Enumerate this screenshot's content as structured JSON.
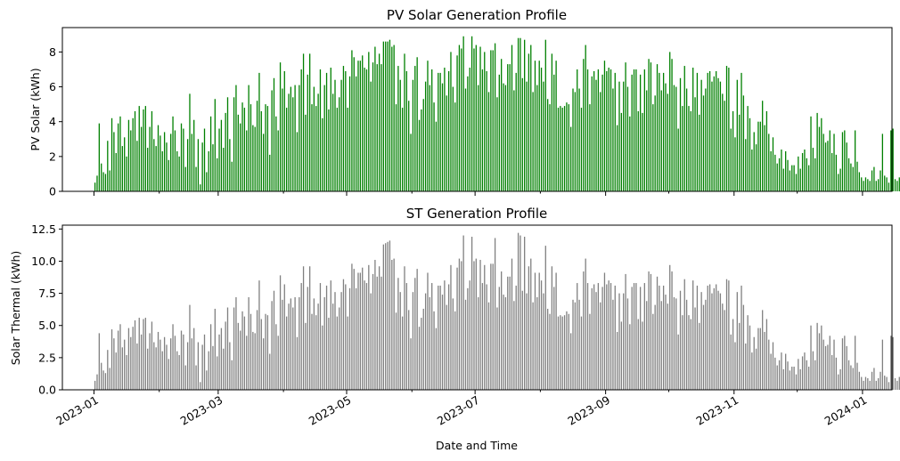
{
  "colors": {
    "pv": "#008000",
    "st": "#808080",
    "axis": "#000000",
    "background": "#ffffff"
  },
  "chart_data": [
    {
      "type": "bar",
      "title": "PV Solar Generation Profile",
      "xlabel": "",
      "ylabel": "PV Solar (kWh)",
      "ylim": [
        0,
        9.4
      ],
      "yticks": [
        "0",
        "2",
        "4",
        "6",
        "8"
      ],
      "xlim": [
        "2022-12-17",
        "2024-01-15"
      ],
      "grid": false,
      "series_color": "#008000",
      "date_range": [
        "2023-01-01",
        "2023-12-31"
      ],
      "resolution": "hourly",
      "daily_peaks": [
        0.5,
        0.9,
        3.9,
        1.6,
        1.1,
        1.0,
        2.9,
        1.2,
        4.2,
        3.4,
        2.2,
        3.9,
        4.3,
        2.6,
        3.1,
        2.0,
        4.1,
        3.5,
        4.2,
        4.6,
        2.9,
        4.9,
        3.7,
        4.7,
        4.9,
        2.5,
        3.7,
        4.6,
        3.0,
        2.6,
        3.8,
        3.2,
        2.3,
        3.4,
        2.8,
        1.8,
        3.3,
        4.3,
        3.5,
        2.3,
        2.0,
        3.9,
        3.6,
        1.4,
        3.0,
        5.6,
        3.3,
        4.1,
        1.4,
        3.0,
        0.4,
        2.8,
        3.6,
        1.1,
        2.3,
        4.3,
        2.7,
        5.3,
        1.9,
        3.6,
        4.1,
        2.5,
        4.5,
        5.4,
        3.0,
        1.7,
        5.4,
        6.1,
        4.4,
        3.9,
        5.1,
        4.8,
        3.5,
        6.1,
        5.0,
        3.8,
        3.7,
        5.2,
        6.8,
        4.6,
        3.3,
        5.0,
        4.9,
        2.1,
        5.8,
        6.5,
        4.3,
        3.5,
        7.4,
        5.9,
        6.9,
        4.8,
        5.6,
        6.0,
        5.4,
        6.1,
        3.4,
        6.1,
        7.0,
        7.9,
        4.4,
        6.7,
        7.9,
        5.0,
        6.0,
        4.9,
        5.6,
        7.0,
        4.2,
        6.1,
        6.8,
        4.7,
        7.1,
        5.6,
        6.4,
        4.8,
        5.4,
        6.4,
        7.2,
        6.9,
        4.8,
        6.6,
        8.1,
        7.7,
        6.6,
        7.5,
        7.5,
        7.8,
        7.1,
        7.0,
        8.0,
        6.3,
        7.4,
        8.3,
        7.3,
        7.9,
        7.3,
        8.6,
        8.6,
        8.6,
        8.7,
        8.3,
        8.4,
        5.0,
        7.2,
        6.4,
        4.8,
        7.9,
        6.9,
        5.2,
        3.3,
        6.4,
        7.2,
        7.7,
        4.1,
        4.7,
        5.3,
        6.3,
        7.5,
        6.1,
        7.0,
        5.1,
        4.0,
        6.8,
        6.8,
        6.2,
        7.1,
        5.5,
        6.9,
        8.0,
        6.0,
        5.1,
        7.8,
        8.4,
        8.2,
        8.9,
        5.9,
        6.6,
        7.1,
        8.9,
        8.2,
        8.4,
        6.1,
        8.3,
        7.0,
        8.0,
        6.9,
        5.7,
        8.1,
        8.1,
        8.5,
        5.4,
        6.7,
        7.6,
        6.2,
        6.1,
        7.3,
        7.3,
        8.4,
        5.8,
        6.8,
        8.8,
        8.8,
        6.5,
        8.7,
        6.3,
        7.9,
        8.4,
        5.7,
        7.5,
        6.1,
        7.5,
        7.1,
        6.3,
        8.7,
        5.3,
        5.0,
        7.9,
        6.7,
        7.5,
        4.8,
        4.9,
        4.8,
        4.9,
        5.1,
        5.0,
        3.7,
        5.9,
        5.7,
        7.0,
        5.9,
        4.8,
        7.6,
        8.4,
        7.0,
        5.0,
        6.6,
        6.9,
        6.4,
        7.0,
        5.7,
        6.7,
        7.5,
        6.9,
        7.1,
        7.0,
        5.9,
        6.8,
        3.8,
        6.3,
        4.5,
        6.3,
        7.4,
        6.0,
        4.3,
        6.7,
        7.0,
        7.0,
        4.6,
        6.7,
        4.5,
        7.0,
        5.8,
        7.6,
        7.4,
        5.0,
        5.5,
        7.3,
        6.8,
        5.8,
        6.8,
        6.2,
        5.6,
        8.0,
        7.6,
        6.1,
        6.0,
        3.6,
        6.5,
        4.9,
        7.2,
        5.9,
        4.9,
        4.6,
        7.1,
        5.4,
        6.8,
        4.4,
        6.4,
        5.5,
        5.9,
        6.8,
        6.9,
        6.3,
        6.6,
        6.9,
        6.5,
        6.3,
        5.6,
        5.2,
        7.2,
        7.1,
        3.6,
        4.6,
        3.1,
        6.4,
        4.4,
        6.8,
        5.5,
        3.0,
        4.9,
        4.2,
        2.4,
        3.4,
        2.7,
        4.0,
        4.0,
        5.2,
        3.8,
        4.6,
        3.3,
        2.3,
        3.1,
        2.1,
        1.6,
        1.9,
        2.4,
        1.3,
        2.3,
        1.8,
        1.2,
        1.5,
        1.5,
        1.0,
        2.0,
        1.3,
        2.2,
        2.4,
        1.9,
        1.5,
        4.3,
        2.5,
        1.9,
        4.5,
        3.7,
        4.2,
        3.3,
        2.8,
        2.9,
        3.5,
        2.2,
        3.3,
        2.1,
        1.0,
        1.3,
        3.4,
        3.5,
        2.8,
        1.9,
        1.6,
        1.4,
        3.5,
        1.7,
        1.1,
        0.8,
        0.6,
        0.8,
        0.7,
        0.6,
        1.2,
        1.4,
        0.6,
        0.7,
        1.2,
        3.3,
        0.9,
        0.8,
        0.5,
        3.5,
        3.6,
        0.7,
        0.6,
        0.8,
        3.3,
        0.8,
        0.5,
        0.6,
        0.7,
        3.3,
        3.6,
        0.7,
        0.8,
        3.0
      ]
    },
    {
      "type": "bar",
      "title": "ST Generation Profile",
      "xlabel": "Date and Time",
      "ylabel": "Solar Thermal (kWh)",
      "ylim": [
        0,
        12.8
      ],
      "yticks": [
        "0.0",
        "2.5",
        "5.0",
        "7.5",
        "10.0",
        "12.5"
      ],
      "xticks": [
        "2023-01",
        "2023-03",
        "2023-05",
        "2023-07",
        "2023-09",
        "2023-11",
        "2024-01"
      ],
      "xlim": [
        "2022-12-17",
        "2024-01-15"
      ],
      "grid": false,
      "series_color": "#808080",
      "date_range": [
        "2023-01-01",
        "2023-12-31"
      ],
      "resolution": "hourly",
      "daily_peaks": [
        0.7,
        1.2,
        4.4,
        2.1,
        1.5,
        1.3,
        3.1,
        1.7,
        4.7,
        4.0,
        2.9,
        4.6,
        5.1,
        3.3,
        3.9,
        2.7,
        4.8,
        4.1,
        4.9,
        5.4,
        3.6,
        5.6,
        4.3,
        5.5,
        5.6,
        3.2,
        4.4,
        5.3,
        3.7,
        3.3,
        4.5,
        3.9,
        3.0,
        4.1,
        3.5,
        2.4,
        4.0,
        5.1,
        4.2,
        3.0,
        2.7,
        4.6,
        4.3,
        1.9,
        3.7,
        6.6,
        4.0,
        4.8,
        1.9,
        3.7,
        0.6,
        3.5,
        4.3,
        1.5,
        3.0,
        5.1,
        3.4,
        6.3,
        2.6,
        4.3,
        4.8,
        3.2,
        5.3,
        6.4,
        3.7,
        2.3,
        6.4,
        7.2,
        5.2,
        4.6,
        6.1,
        5.7,
        4.2,
        7.2,
        5.9,
        4.5,
        4.4,
        6.2,
        8.5,
        5.5,
        4.0,
        5.9,
        5.8,
        2.8,
        6.9,
        7.7,
        5.1,
        4.2,
        8.9,
        7.0,
        8.2,
        5.7,
        6.7,
        7.1,
        6.4,
        7.2,
        4.1,
        7.2,
        8.3,
        9.6,
        5.2,
        8.0,
        9.6,
        5.9,
        7.1,
        5.8,
        6.7,
        8.3,
        5.0,
        7.2,
        8.1,
        5.6,
        8.5,
        6.7,
        7.6,
        5.7,
        6.4,
        7.6,
        8.6,
        8.2,
        5.7,
        7.9,
        9.8,
        9.4,
        7.9,
        9.1,
        9.1,
        9.5,
        8.5,
        8.3,
        9.7,
        7.5,
        9.0,
        10.1,
        8.8,
        9.6,
        8.8,
        11.3,
        11.4,
        11.5,
        11.6,
        10.1,
        10.2,
        6.0,
        8.7,
        7.6,
        5.7,
        9.6,
        8.3,
        6.2,
        4.0,
        7.6,
        8.7,
        9.4,
        4.9,
        5.6,
        6.3,
        7.5,
        9.1,
        7.2,
        8.3,
        6.1,
        4.8,
        8.1,
        8.1,
        7.4,
        8.5,
        6.6,
        8.2,
        9.7,
        7.1,
        6.1,
        9.5,
        10.2,
        10.0,
        12.0,
        7.0,
        7.9,
        8.5,
        11.9,
        10.0,
        10.2,
        7.2,
        10.1,
        8.3,
        9.7,
        8.2,
        6.8,
        9.8,
        9.8,
        11.8,
        6.4,
        8.0,
        9.2,
        7.4,
        7.2,
        8.8,
        8.8,
        10.2,
        6.9,
        8.1,
        12.2,
        12.0,
        7.7,
        11.9,
        7.5,
        9.6,
        10.2,
        6.8,
        9.1,
        7.2,
        9.1,
        8.5,
        7.5,
        11.2,
        6.3,
        5.9,
        9.6,
        8.0,
        9.1,
        5.7,
        5.8,
        5.7,
        5.8,
        6.1,
        5.9,
        4.4,
        7.0,
        6.8,
        8.3,
        7.0,
        5.7,
        9.2,
        10.2,
        8.3,
        5.9,
        7.9,
        8.2,
        7.6,
        8.3,
        6.8,
        8.0,
        9.1,
        8.2,
        8.5,
        8.3,
        7.0,
        8.1,
        4.5,
        7.5,
        5.3,
        7.5,
        9.0,
        7.1,
        5.1,
        8.0,
        8.3,
        8.3,
        5.5,
        8.0,
        5.3,
        8.3,
        6.9,
        9.2,
        9.0,
        5.9,
        6.6,
        8.8,
        8.1,
        6.9,
        8.1,
        7.4,
        6.7,
        9.7,
        9.2,
        7.2,
        7.1,
        4.3,
        7.7,
        5.8,
        8.6,
        7.0,
        5.8,
        5.5,
        8.5,
        6.4,
        8.1,
        5.2,
        7.6,
        6.6,
        7.0,
        8.1,
        8.2,
        7.5,
        7.9,
        8.2,
        7.7,
        7.5,
        6.7,
        6.2,
        8.6,
        8.5,
        4.3,
        5.5,
        3.7,
        7.6,
        5.2,
        8.1,
        6.6,
        3.6,
        5.8,
        5.0,
        2.9,
        4.1,
        3.2,
        4.8,
        4.8,
        6.2,
        4.5,
        5.5,
        3.9,
        2.8,
        3.7,
        2.5,
        1.9,
        2.3,
        2.9,
        1.6,
        2.8,
        2.2,
        1.5,
        1.8,
        1.8,
        1.2,
        2.4,
        1.6,
        2.6,
        2.9,
        2.3,
        1.8,
        5.0,
        3.0,
        2.3,
        5.2,
        4.4,
        5.0,
        3.9,
        3.4,
        3.5,
        4.2,
        2.7,
        3.9,
        2.5,
        1.2,
        1.6,
        4.0,
        4.2,
        3.4,
        2.3,
        1.9,
        1.7,
        4.2,
        2.1,
        1.4,
        1.0,
        0.7,
        1.0,
        0.9,
        0.7,
        1.4,
        1.7,
        0.7,
        0.9,
        1.4,
        3.9,
        1.1,
        1.0,
        0.6,
        4.2,
        4.1,
        0.9,
        0.7,
        1.0,
        4.0,
        1.0,
        0.6,
        0.7,
        0.9,
        3.9,
        4.3,
        0.9,
        1.0,
        3.1
      ]
    }
  ]
}
